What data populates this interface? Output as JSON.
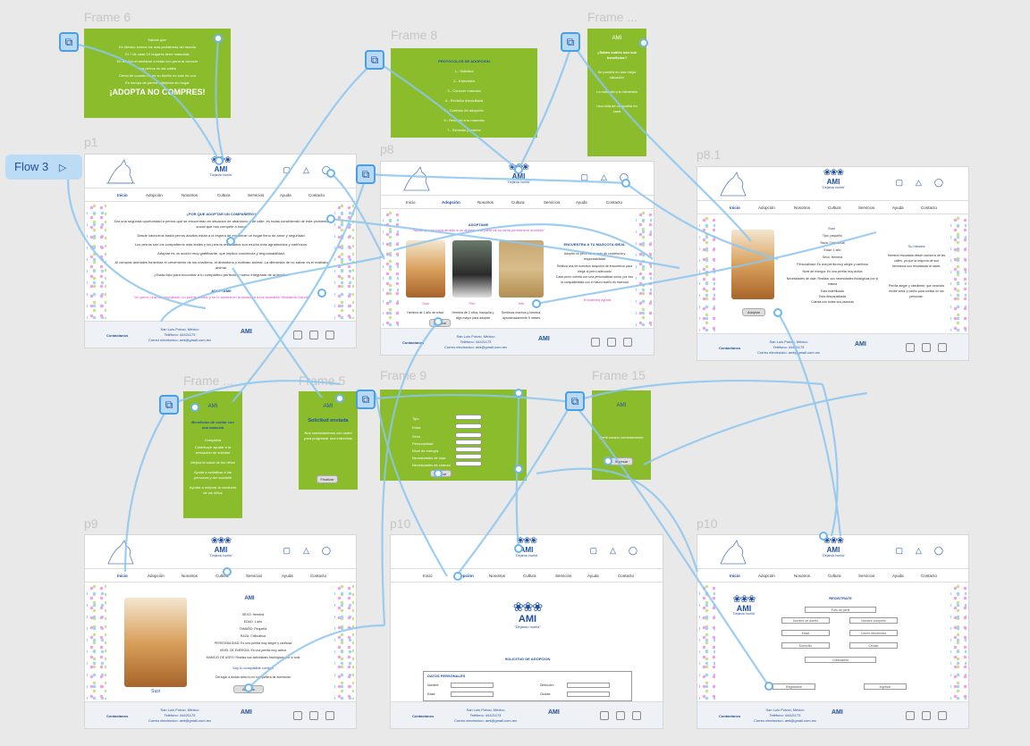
{
  "canvas": {
    "flow_label": "Flow 3",
    "frame_labels": [
      "Frame 6",
      "Frame 8",
      "Frame ...",
      "p1",
      "p8",
      "p8.1",
      "Frame ...",
      "Frame 5",
      "Frame 9",
      "Frame 15",
      "p9",
      "p10",
      "p10"
    ]
  },
  "brand": {
    "name": "AMI",
    "slogan": "\"Dejando huella\"",
    "color_primary": "#1f4f9e",
    "color_green": "#8bbc2c",
    "color_pink": "#e040c8"
  },
  "nav": [
    "Inicio",
    "Adopción",
    "Nosotros",
    "Cultura",
    "Servicios",
    "Ayuda",
    "Contacto"
  ],
  "footer": {
    "label": "Contactanos",
    "address": "San Luis Potosí, México",
    "phone": "Teléfono: 44421173",
    "email": "Correo electronico: ami@gmail.com.mx",
    "ami": "AMI",
    "slogan": "\"Dejando huella\""
  },
  "frame6": {
    "lines": [
      "Sabías que:",
      "En México somos los más problemas del mundo",
      "El 7 de cada 10 hogares tiene mascotas",
      "En México el sentarse a estas con pena al conocer",
      "sus perros en las calles",
      "Cerca de cuando no es su dueño no solo es uno",
      "En tiempo de perros callejeros sin hogar"
    ],
    "cta": "¡ADOPTA NO COMPRES!"
  },
  "frame8": {
    "title": "PROTOCOLOS DE ADOPCION",
    "steps": [
      "1.- Solicitud",
      "2.- Entrevista",
      "3.- Conocer mascota",
      "4.- Revisión domiciliaria",
      "5.- Contrato de adopción",
      "6.- Recoger a tu mascota",
      "7.- Revisión posterior"
    ]
  },
  "frame_top_right": {
    "title": "¿Sabes cuáles son sus beneficios?",
    "lines": [
      "Se pondrá en una mejor situación",
      "La mascota y tu bienestar",
      "Una vida de compañía en casa"
    ]
  },
  "p1": {
    "heading": "¿POR QUE ADOPTAR UN COMPAÑERO?",
    "paragraphs": [
      "Dar una segunda oportunidad a perros que se encuentran en situación de abandono y de calle, es todas concibiendo de este problema social que nos compete a todos",
      "Desde cachorros hasta perros adultos están a la espera de encontrar un hogar lleno de amor y seguridad.",
      "Los perros son los compañeros más leales y los perros rescatados son mucho más agradecidos y cariñosos.",
      "Adoptar es un acción muy gratificante, que implica conciencia y responsabilidad.",
      "Al comprar animales fomentas el crecimiento de los criaderos, el abandono y maltrato animal. La diferencia de no salvar es el maltrato animal.",
      "¿Estás listo para encontrar a tu compañero perfecto y nuevo integrante de la familia?"
    ],
    "cta_title": "ADOPTAME",
    "quote": "\"Un perro, una vez rescatado, no puede olvidar y se lo tomara en la sociedad a los animales\" Mahatma Gandhi"
  },
  "p8": {
    "title": "ADOPTAME",
    "subtitle": "\"Nadie que no haya amado a un animal, una parte de su alma permanece dormida\"",
    "side_title": "ENCUENTRA A TU MASCOTA IDEAL",
    "side_lines": [
      "Adoptar un perro es un acto de conciencia y responsabilidad",
      "Realiza una de nuestros adopción de encuentros para elegir al perro adecuado",
      "Cada perro cuenta con una personalidad única, por eso la compatibilidad con el futuro dueño es esencial"
    ],
    "pets": [
      {
        "name": "Susi",
        "desc": "Hembra de 1 año de edad."
      },
      {
        "name": "Pim",
        "desc": "Hembra de 2 años, tranquila y algo mayor para adoptar"
      },
      {
        "name": "Vito",
        "desc": "Sentimos machos y hembra, aproximadamente 5 meses"
      }
    ],
    "cta": "Encuentra ayuda",
    "button": "Adoptar"
  },
  "p81": {
    "name": "Susi",
    "fields": [
      "Tipo: pequeño",
      "Raza: Chihuahua",
      "Edad: 1 año",
      "Sexo: Hembra",
      "Personalidad: Es una perrita muy alegre y cariñosa",
      "Nivel de energía: Es una perrita muy activa",
      "Necesidades de usar: Realizar sus necesidades fisiológicas por sí misma",
      "Esta esterilizada",
      "Esta desparasitada",
      "Cuenta con todas sus vacunas"
    ],
    "story_title": "Su historia",
    "story": "Hembra rescatada desde cachorra de las calles, ya que la mayoría de sus hermanos son rescatadas al nacer.",
    "story2": "Perrita alegre y obediente, que necesita recibir amor y cariño para confiar en las personas.",
    "button": "Adoptar"
  },
  "frame_left_mid": {
    "title": "Beneficios de contar con una mascota",
    "lines": [
      "Compañía",
      "Contribuye ayudar a la sensación de soledad",
      "Mejora la salud de los niños",
      "Ayuda a socializar a las personas y ser sociable",
      "Ayudar a mejorar la conducta de los niños"
    ]
  },
  "frame5": {
    "title": "Solicitud enviada",
    "body": "Nos contactaremos con usted para programar una entrevista",
    "button": "Finalizar"
  },
  "frame9": {
    "fields": [
      "Tipo",
      "Edad",
      "Sexo",
      "Personalidad",
      "Nivel de energía",
      "Necesidades de usar",
      "Necesidades de crianza"
    ],
    "button": "Buscar"
  },
  "frame15": {
    "text": "Perfil creado correctamente",
    "button": "Ingresar"
  },
  "p9": {
    "name": "Susi",
    "fields": [
      "SEXO: Hembra",
      "EDAD: 1 año",
      "TAMAÑO: Pequeña",
      "RAZA: Chihuahua",
      "PERSONALIDAD: Es una perrita muy alegre y cariñosa",
      "NIVEL DE ENERGÍA: Es una perrita muy activa",
      "MANEJO DE ASEO: Realiza sus actividades fisiológicas por sí sola"
    ],
    "compat": "Soy tu compatible contigo",
    "invite": "Da lugar a dudas tanto tu mi compañera de aventuras",
    "button": "Adoptar"
  },
  "p10a": {
    "title": "SOLICITUD DE ADOPCION",
    "section": "DATOS PERSONALES",
    "labels": [
      "Nombre:",
      "Dirección:",
      "Edad:",
      "Ciudad:"
    ]
  },
  "p10b": {
    "title": "REGISTRATE",
    "fields": [
      "Foto de perfil",
      "Nombre de dueño",
      "Nombre completo",
      "Edad",
      "Correo electrónico",
      "Domicilio",
      "Celular",
      "Contraseña"
    ],
    "btn_left": "Registrarse",
    "btn_right": "Ingresar"
  }
}
